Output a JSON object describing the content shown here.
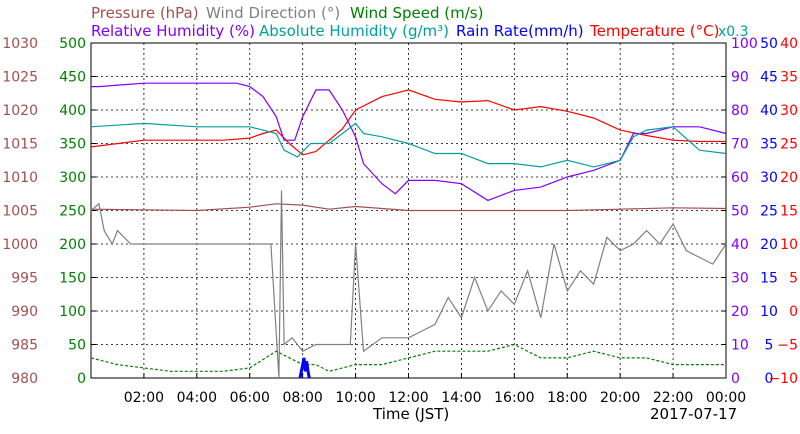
{
  "chart_data": {
    "type": "line",
    "date": "2017-07-17",
    "xlabel": "Time (JST)",
    "x_ticks": [
      "02:00",
      "04:00",
      "06:00",
      "08:00",
      "10:00",
      "12:00",
      "14:00",
      "16:00",
      "18:00",
      "20:00",
      "22:00",
      "00:00"
    ],
    "x_range_hours": [
      0,
      24
    ],
    "grid": true,
    "legend": {
      "row1": [
        {
          "text": "Pressure (hPa)",
          "color": "#a05050"
        },
        {
          "text": "Wind Direction (°)",
          "color": "#808080"
        },
        {
          "text": "Wind Speed (m/s)",
          "color": "#008000"
        }
      ],
      "row2": [
        {
          "text": "Relative Humidity (%)",
          "color": "#8000ff"
        },
        {
          "text": "Absolute Humidity (g/m³)",
          "color": "#00a0a0"
        },
        {
          "text": "Rain Rate(mm/h)",
          "color": "#0000ff"
        },
        {
          "text": "Temperature (°C)",
          "color": "#ff0000"
        }
      ],
      "abs_humidity_scale": "x0.3"
    },
    "axes": {
      "pressure": {
        "label": "Pressure (hPa)",
        "color": "#a05050",
        "ylim": [
          980,
          1030
        ],
        "ticks": [
          "1030",
          "1025",
          "1020",
          "1015",
          "1010",
          "1005",
          "1000",
          "995",
          "990",
          "985",
          "980"
        ]
      },
      "wind_direction": {
        "label": "Wind Direction (°)",
        "color": "#808080",
        "ylim": [
          0,
          500
        ],
        "ticks": [
          "500",
          "450",
          "400",
          "350",
          "300",
          "250",
          "200",
          "150",
          "100",
          "50",
          "0"
        ]
      },
      "wind_speed": {
        "label": "Wind Speed (m/s)",
        "color": "#008000",
        "ylim": [
          0,
          50
        ]
      },
      "relative_humidity": {
        "label": "Relative Humidity (%)",
        "color": "#8000ff",
        "ylim": [
          0,
          100
        ],
        "ticks": [
          "100",
          "90",
          "80",
          "70",
          "60",
          "50",
          "40",
          "30",
          "20",
          "10",
          "0"
        ]
      },
      "rain_rate": {
        "label": "Rain Rate(mm/h)",
        "color": "#0000ff",
        "ylim": [
          0,
          50
        ],
        "ticks": [
          "50",
          "45",
          "40",
          "35",
          "30",
          "25",
          "20",
          "15",
          "10",
          "5",
          "0"
        ]
      },
      "temperature": {
        "label": "Temperature (°C)",
        "color": "#ff0000",
        "ylim": [
          -10,
          40
        ],
        "ticks": [
          "40",
          "35",
          "30",
          "25",
          "20",
          "15",
          "10",
          "5",
          "0",
          "−5",
          "−10"
        ]
      }
    },
    "series": [
      {
        "name": "Temperature",
        "axis": "temperature",
        "color": "#ff0000",
        "x": [
          0,
          2,
          4,
          5,
          6,
          6.5,
          7,
          7.5,
          8,
          8.5,
          9,
          9.5,
          10,
          10.5,
          11,
          11.5,
          12,
          13,
          14,
          15,
          16,
          17,
          18,
          19,
          20,
          21,
          22,
          23,
          24
        ],
        "y": [
          24.5,
          25.5,
          25.5,
          25.5,
          25.8,
          26.5,
          27,
          25,
          23.3,
          23.8,
          25.5,
          27.2,
          30,
          31,
          32,
          32.5,
          33,
          31.6,
          31.2,
          31.4,
          30,
          30.5,
          29.8,
          28.8,
          27,
          26.2,
          25.5,
          25.3,
          25.3
        ]
      },
      {
        "name": "Relative Humidity",
        "axis": "relative_humidity",
        "color": "#8000ff",
        "x": [
          0,
          0.3,
          2,
          4,
          5.5,
          6,
          6.5,
          7,
          7.3,
          7.7,
          8,
          8.5,
          9,
          9.5,
          10,
          10.3,
          11,
          11.5,
          12,
          13,
          14,
          15,
          16,
          17,
          18,
          19,
          20,
          20.5,
          21,
          22,
          23,
          24
        ],
        "y": [
          87,
          87,
          88,
          88,
          88,
          87,
          84,
          78,
          71,
          71,
          78,
          86,
          86,
          80,
          72,
          64,
          58,
          55,
          59,
          59,
          58,
          53,
          56,
          57,
          60,
          62,
          65,
          73,
          73,
          75,
          75,
          73
        ]
      },
      {
        "name": "Absolute Humidity",
        "axis": "relative_humidity",
        "color": "#00a0a0",
        "x": [
          0,
          2,
          4,
          5.5,
          6,
          6.5,
          7,
          7.3,
          7.8,
          8.3,
          9,
          9.5,
          10,
          10.3,
          11,
          12,
          13,
          14,
          15,
          16,
          17,
          18,
          19,
          20,
          20.5,
          21,
          22,
          23,
          24
        ],
        "y": [
          75,
          76,
          75,
          75,
          75,
          74,
          73,
          68,
          66,
          70,
          70,
          73,
          76,
          73,
          72,
          70,
          67,
          67,
          64,
          64,
          63,
          65,
          63,
          65,
          72,
          74,
          75,
          68,
          67
        ]
      },
      {
        "name": "Pressure",
        "axis": "pressure",
        "color": "#a05050",
        "x": [
          0,
          2,
          4,
          6,
          7,
          8,
          9,
          10,
          11,
          12,
          14,
          16,
          18,
          20,
          22,
          24
        ],
        "y": [
          1005.2,
          1005.1,
          1005.0,
          1005.5,
          1006.0,
          1005.8,
          1005.2,
          1005.6,
          1005.3,
          1005.0,
          1005.0,
          1005.0,
          1005.0,
          1005.2,
          1005.4,
          1005.3
        ]
      },
      {
        "name": "Wind Direction",
        "axis": "wind_direction",
        "color": "#808080",
        "x": [
          0,
          0.3,
          0.5,
          0.8,
          1,
          1.5,
          2,
          4,
          6,
          6.8,
          7.1,
          7.2,
          7.3,
          7.6,
          8,
          8.5,
          9,
          9.5,
          9.8,
          10,
          10.3,
          11,
          12,
          12.5,
          13,
          13.5,
          14,
          14.5,
          15,
          15.5,
          16,
          16.5,
          17,
          17.5,
          18,
          18.5,
          19,
          19.5,
          20,
          20.5,
          21,
          21.5,
          22,
          22.5,
          23,
          23.5,
          24
        ],
        "y": [
          250,
          260,
          220,
          200,
          220,
          200,
          200,
          200,
          200,
          200,
          0,
          280,
          50,
          60,
          40,
          50,
          50,
          50,
          50,
          200,
          40,
          60,
          60,
          70,
          80,
          120,
          90,
          150,
          100,
          130,
          110,
          160,
          90,
          200,
          130,
          160,
          140,
          210,
          190,
          200,
          220,
          200,
          230,
          190,
          180,
          170,
          200
        ]
      },
      {
        "name": "Wind Speed",
        "axis": "wind_speed",
        "color": "#008000",
        "x": [
          0,
          1,
          2,
          3,
          4,
          5,
          6,
          7,
          7.5,
          8,
          8.5,
          9,
          10,
          11,
          12,
          13,
          14,
          15,
          16,
          17,
          18,
          19,
          20,
          21,
          22,
          23,
          24
        ],
        "y": [
          3,
          2,
          1.5,
          1,
          1,
          1,
          1.5,
          4,
          3,
          2,
          2,
          1,
          2,
          2,
          3,
          4,
          4,
          4,
          5,
          3,
          3,
          4,
          3,
          3,
          2,
          2,
          2
        ]
      },
      {
        "name": "Rain Rate",
        "axis": "rain_rate",
        "color": "#0000ff",
        "x": [
          7.9,
          8.0,
          8.05,
          8.1,
          8.15,
          8.2,
          8.25
        ],
        "y": [
          0,
          2,
          3,
          1,
          2.5,
          1,
          0
        ]
      }
    ]
  }
}
